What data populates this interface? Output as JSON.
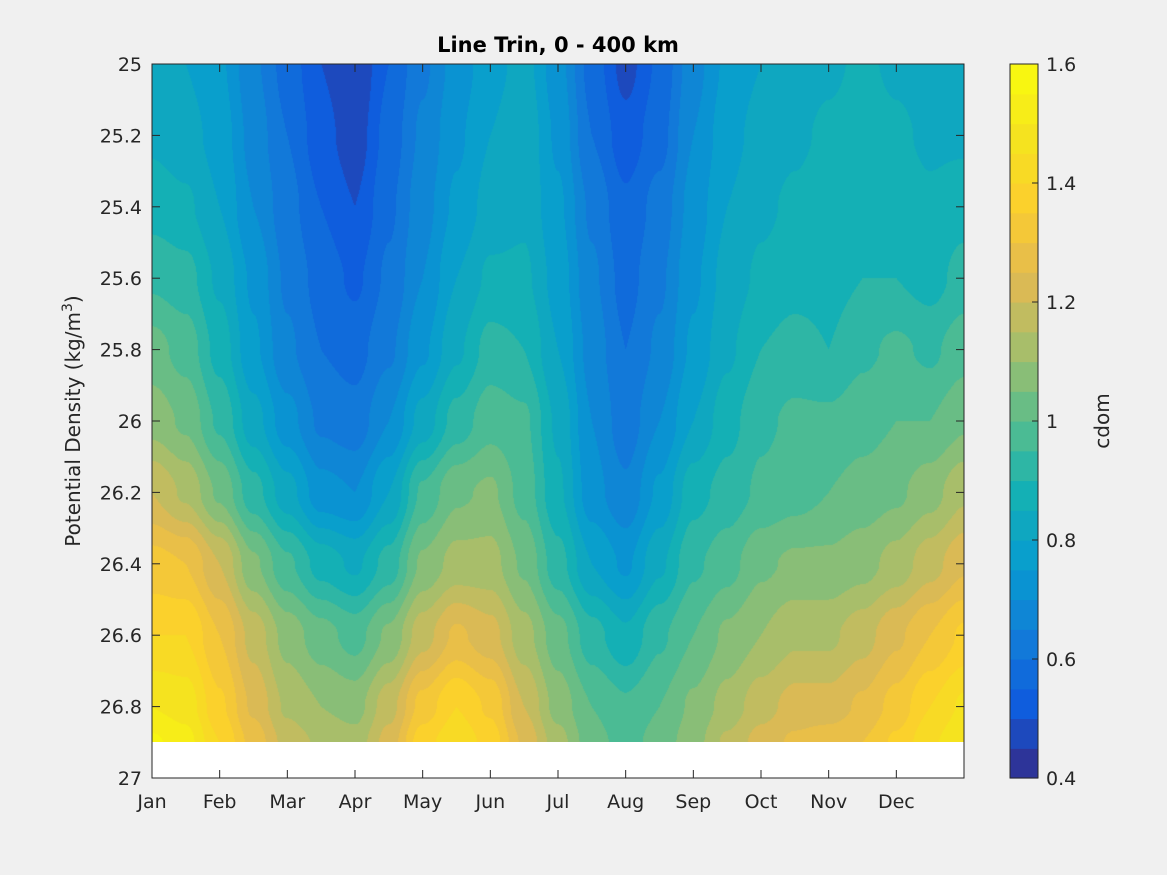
{
  "chart_data": {
    "type": "heatmap",
    "subtype": "filled-contour",
    "title": "Line Trin, 0 - 400 km",
    "ylabel_main": "Potential Density (kg/m",
    "ylabel_sup": "3",
    "ylabel_close": ")",
    "xlabel": "",
    "x_ticks": [
      "Jan",
      "Feb",
      "Mar",
      "Apr",
      "May",
      "Jun",
      "Jul",
      "Aug",
      "Sep",
      "Oct",
      "Nov",
      "Dec"
    ],
    "x_tick_pos": [
      1,
      2,
      3,
      4,
      5,
      6,
      7,
      8,
      9,
      10,
      11,
      12
    ],
    "xlim": [
      1,
      13
    ],
    "y_ticks": [
      "25",
      "25.2",
      "25.4",
      "25.6",
      "25.8",
      "26",
      "26.2",
      "26.4",
      "26.6",
      "26.8",
      "27"
    ],
    "y_tick_pos": [
      25,
      25.2,
      25.4,
      25.6,
      25.8,
      26,
      26.2,
      26.4,
      26.6,
      26.8,
      27
    ],
    "ylim": [
      25,
      27
    ],
    "y_reversed": true,
    "data_ymax": 26.9,
    "colorbar": {
      "label": "cdom",
      "ticks": [
        "0.4",
        "0.6",
        "0.8",
        "1",
        "1.2",
        "1.4",
        "1.6"
      ],
      "tick_pos": [
        0.4,
        0.6,
        0.8,
        1.0,
        1.2,
        1.4,
        1.6
      ],
      "range": [
        0.4,
        1.6
      ],
      "levels": 24,
      "colormap": "parula"
    },
    "field_description": "cdom vs. month (Jan-Dec) and potential density 25-26.9; minima ~0.45 near late Mar and early Aug at 25.0-25.3; maxima ~1.5 near Jan and late May at 26.8-26.9",
    "grid": {
      "y": [
        25.0,
        25.2,
        25.4,
        25.6,
        25.8,
        26.0,
        26.2,
        26.4,
        26.6,
        26.8,
        26.9
      ],
      "months": [
        1,
        1.5,
        2,
        2.5,
        3,
        3.5,
        4,
        4.5,
        5,
        5.5,
        6,
        6.5,
        7,
        7.5,
        8,
        8.5,
        9,
        9.5,
        10,
        10.5,
        11,
        11.5,
        12,
        12.5,
        13
      ],
      "values": [
        [
          0.8,
          0.8,
          0.76,
          0.66,
          0.58,
          0.5,
          0.45,
          0.55,
          0.64,
          0.72,
          0.78,
          0.82,
          0.72,
          0.58,
          0.48,
          0.56,
          0.68,
          0.76,
          0.8,
          0.82,
          0.84,
          0.86,
          0.84,
          0.82,
          0.8
        ],
        [
          0.84,
          0.82,
          0.78,
          0.68,
          0.6,
          0.52,
          0.47,
          0.57,
          0.66,
          0.74,
          0.8,
          0.84,
          0.74,
          0.6,
          0.52,
          0.58,
          0.7,
          0.78,
          0.82,
          0.84,
          0.86,
          0.88,
          0.86,
          0.84,
          0.84
        ],
        [
          0.88,
          0.86,
          0.8,
          0.7,
          0.62,
          0.55,
          0.5,
          0.59,
          0.68,
          0.76,
          0.82,
          0.84,
          0.76,
          0.64,
          0.56,
          0.62,
          0.72,
          0.8,
          0.84,
          0.86,
          0.88,
          0.88,
          0.88,
          0.86,
          0.88
        ],
        [
          0.94,
          0.92,
          0.84,
          0.74,
          0.64,
          0.58,
          0.54,
          0.61,
          0.7,
          0.8,
          0.86,
          0.86,
          0.78,
          0.66,
          0.58,
          0.64,
          0.74,
          0.82,
          0.86,
          0.88,
          0.88,
          0.9,
          0.9,
          0.88,
          0.92
        ],
        [
          1.02,
          0.98,
          0.88,
          0.76,
          0.66,
          0.6,
          0.58,
          0.64,
          0.74,
          0.84,
          0.92,
          0.9,
          0.8,
          0.68,
          0.6,
          0.66,
          0.76,
          0.84,
          0.9,
          0.92,
          0.9,
          0.94,
          0.96,
          0.94,
          0.98
        ],
        [
          1.08,
          1.04,
          0.94,
          0.82,
          0.72,
          0.64,
          0.62,
          0.7,
          0.82,
          0.92,
          0.98,
          0.96,
          0.84,
          0.7,
          0.62,
          0.7,
          0.8,
          0.88,
          0.94,
          0.96,
          0.96,
          0.98,
          1.0,
          1.0,
          1.04
        ],
        [
          1.2,
          1.14,
          1.04,
          0.92,
          0.82,
          0.72,
          0.7,
          0.8,
          0.96,
          1.04,
          1.06,
          0.98,
          0.86,
          0.72,
          0.66,
          0.76,
          0.88,
          0.92,
          0.96,
          0.98,
          1.0,
          1.02,
          1.04,
          1.08,
          1.14
        ],
        [
          1.32,
          1.3,
          1.2,
          1.06,
          0.96,
          0.88,
          0.84,
          0.92,
          1.06,
          1.12,
          1.12,
          1.04,
          0.92,
          0.8,
          0.74,
          0.84,
          0.94,
          0.98,
          1.04,
          1.06,
          1.06,
          1.08,
          1.12,
          1.18,
          1.24
        ],
        [
          1.4,
          1.4,
          1.3,
          1.18,
          1.08,
          1.02,
          0.98,
          1.06,
          1.18,
          1.26,
          1.22,
          1.12,
          1.02,
          0.92,
          0.86,
          0.94,
          1.0,
          1.06,
          1.1,
          1.14,
          1.14,
          1.18,
          1.24,
          1.3,
          1.36
        ],
        [
          1.5,
          1.48,
          1.36,
          1.24,
          1.14,
          1.1,
          1.08,
          1.18,
          1.32,
          1.4,
          1.34,
          1.2,
          1.08,
          1.0,
          0.96,
          1.0,
          1.06,
          1.12,
          1.18,
          1.22,
          1.22,
          1.26,
          1.32,
          1.4,
          1.46
        ],
        [
          1.56,
          1.52,
          1.4,
          1.28,
          1.18,
          1.14,
          1.12,
          1.22,
          1.38,
          1.44,
          1.38,
          1.24,
          1.12,
          1.02,
          0.98,
          1.02,
          1.08,
          1.16,
          1.22,
          1.26,
          1.28,
          1.3,
          1.36,
          1.44,
          1.5
        ]
      ]
    }
  }
}
